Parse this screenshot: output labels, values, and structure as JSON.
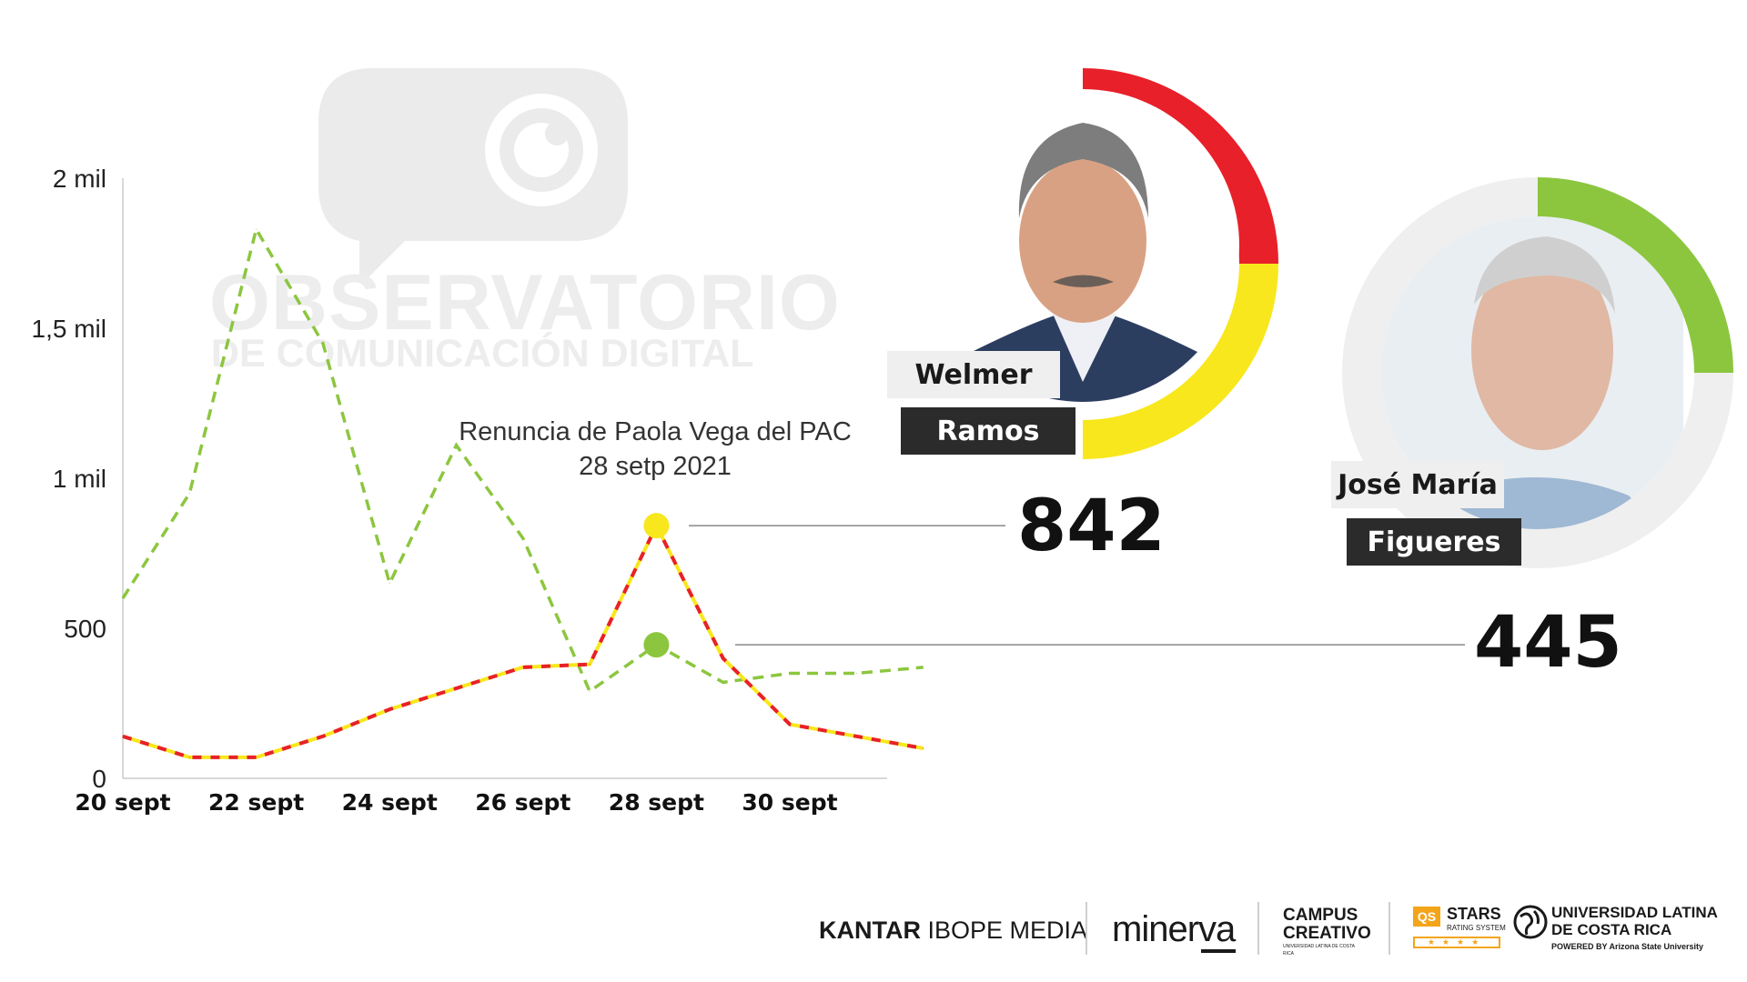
{
  "watermark": {
    "title": "OBSERVATORIO",
    "subtitle": "DE COMUNICACIÓN DIGITAL"
  },
  "annotation": {
    "line1": "Renuncia de Paola Vega del PAC",
    "line2": "28 setp 2021"
  },
  "candidates": [
    {
      "first": "Welmer",
      "last": "Ramos",
      "value_label": "842",
      "ring_colors": [
        "#e8202a",
        "#f8e71c"
      ]
    },
    {
      "first": "José María",
      "last": "Figueres",
      "value_label": "445",
      "ring_colors": [
        "#8cc63f",
        "#efefef"
      ]
    }
  ],
  "colors": {
    "red": "#e8202a",
    "yellow": "#f8e71c",
    "green": "#8cc63f",
    "axis": "#cccccc"
  },
  "chart_data": {
    "type": "line",
    "x": [
      "20 sept",
      "21 sept",
      "22 sept",
      "23 sept",
      "24 sept",
      "25 sept",
      "26 sept",
      "27 sept",
      "28 sept",
      "29 sept",
      "30 sept",
      "1 oct",
      "2 oct"
    ],
    "x_ticks": [
      "20 sept",
      "22 sept",
      "24 sept",
      "26 sept",
      "28 sept",
      "30 sept"
    ],
    "y_ticks": [
      {
        "value": 0,
        "label": "0"
      },
      {
        "value": 500,
        "label": "500"
      },
      {
        "value": 1000,
        "label": "1 mil"
      },
      {
        "value": 1500,
        "label": "1,5 mil"
      },
      {
        "value": 2000,
        "label": "2 mil"
      }
    ],
    "ylim": [
      0,
      2000
    ],
    "series": [
      {
        "name": "Welmer Ramos",
        "style": "red-yellow-dash",
        "values": [
          140,
          70,
          70,
          140,
          230,
          300,
          370,
          380,
          842,
          400,
          180,
          140,
          100
        ]
      },
      {
        "name": "José María Figueres",
        "style": "green-dash",
        "values": [
          600,
          950,
          1830,
          1450,
          650,
          1110,
          800,
          290,
          445,
          320,
          350,
          350,
          370
        ]
      }
    ],
    "highlight": {
      "x": "28 sept",
      "values": [
        842,
        445
      ]
    },
    "title": "",
    "xlabel": "",
    "ylabel": ""
  },
  "footer": {
    "kantar": "KANTAR",
    "ibope": "IBOPE MEDIA",
    "minerva": "minerva",
    "campus": "CAMPUS",
    "creativo": "CREATIVO",
    "campus_small": "UNIVERSIDAD LATINA DE COSTA RICA",
    "qs": "QS",
    "stars": "STARS",
    "rating": "RATING SYSTEM",
    "ulatina1": "UNIVERSIDAD LATINA",
    "ulatina2": "DE COSTA RICA",
    "powered": "POWERED BY Arizona State University"
  }
}
